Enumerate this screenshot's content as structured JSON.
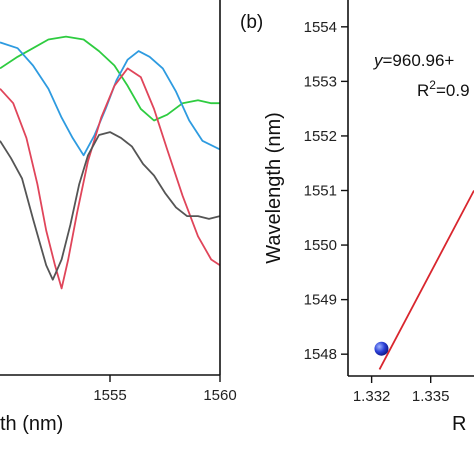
{
  "chart_data": [
    {
      "type": "line",
      "xlabel": "Wavelength (nm)",
      "xlabel_visible": "th (nm)",
      "xlim": [
        1550.0,
        1560
      ],
      "x_ticks": [
        1555,
        1560
      ],
      "series": [
        {
          "color": "#2ecc40",
          "x": [
            1550.0,
            1550.8,
            1551.5,
            1552.2,
            1553.0,
            1553.8,
            1554.5,
            1555.2,
            1555.8,
            1556.4,
            1557.0,
            1557.6,
            1558.3,
            1559.0,
            1559.6,
            1560.0
          ],
          "y": [
            0.3,
            0.34,
            0.37,
            0.4,
            0.41,
            0.4,
            0.36,
            0.31,
            0.24,
            0.16,
            0.12,
            0.14,
            0.18,
            0.19,
            0.18,
            0.18
          ]
        },
        {
          "color": "#2e9be0",
          "x": [
            1550.0,
            1550.8,
            1551.5,
            1552.2,
            1552.8,
            1553.3,
            1553.8,
            1554.3,
            1554.8,
            1555.3,
            1555.8,
            1556.3,
            1556.8,
            1557.4,
            1558.0,
            1558.6,
            1559.2,
            1560.0
          ],
          "y": [
            0.39,
            0.37,
            0.31,
            0.23,
            0.13,
            0.06,
            0.0,
            0.07,
            0.16,
            0.26,
            0.33,
            0.36,
            0.34,
            0.3,
            0.22,
            0.12,
            0.05,
            0.02
          ]
        },
        {
          "color": "#e0455a",
          "x": [
            1550.0,
            1550.6,
            1551.2,
            1551.7,
            1552.1,
            1552.5,
            1552.8,
            1553.1,
            1553.5,
            1554.0,
            1554.6,
            1555.2,
            1555.8,
            1556.4,
            1557.0,
            1557.6,
            1558.3,
            1559.0,
            1559.6,
            1560.0
          ],
          "y": [
            0.23,
            0.18,
            0.06,
            -0.1,
            -0.26,
            -0.38,
            -0.46,
            -0.36,
            -0.2,
            -0.02,
            0.13,
            0.24,
            0.3,
            0.27,
            0.16,
            0.02,
            -0.14,
            -0.28,
            -0.36,
            -0.38
          ]
        },
        {
          "color": "#555555",
          "x": [
            1550.0,
            1550.5,
            1551.0,
            1551.5,
            1551.8,
            1552.1,
            1552.4,
            1552.8,
            1553.2,
            1553.6,
            1554.0,
            1554.5,
            1555.0,
            1555.5,
            1556.0,
            1556.5,
            1557.0,
            1557.5,
            1558.0,
            1558.5,
            1559.0,
            1559.5,
            1560.0
          ],
          "y": [
            0.05,
            -0.01,
            -0.08,
            -0.22,
            -0.3,
            -0.38,
            -0.43,
            -0.36,
            -0.24,
            -0.1,
            0.0,
            0.07,
            0.08,
            0.06,
            0.03,
            -0.03,
            -0.07,
            -0.13,
            -0.18,
            -0.21,
            -0.21,
            -0.22,
            -0.21
          ]
        }
      ]
    },
    {
      "type": "scatter",
      "panel_label": "(b)",
      "ylabel": "Wavelength (nm)",
      "xlabel_visible": "R",
      "ylim": [
        1547.6,
        1554.4
      ],
      "y_ticks": [
        1548,
        1549,
        1550,
        1551,
        1552,
        1553,
        1554
      ],
      "xlim": [
        1.3308,
        1.3372
      ],
      "x_ticks": [
        1.332,
        1.335
      ],
      "x_tick_labels": [
        "1.332",
        "1.335"
      ],
      "points": [
        {
          "x": 1.3325,
          "y": 1548.1
        }
      ],
      "fit_line": {
        "x": [
          1.3324,
          1.3372
        ],
        "y": [
          1547.72,
          1551.0
        ]
      },
      "equation_prefix": "y",
      "equation_rest": "=960.96+",
      "r2_base": "R",
      "r2_sup": "2",
      "r2_rest": "=0.9"
    }
  ]
}
